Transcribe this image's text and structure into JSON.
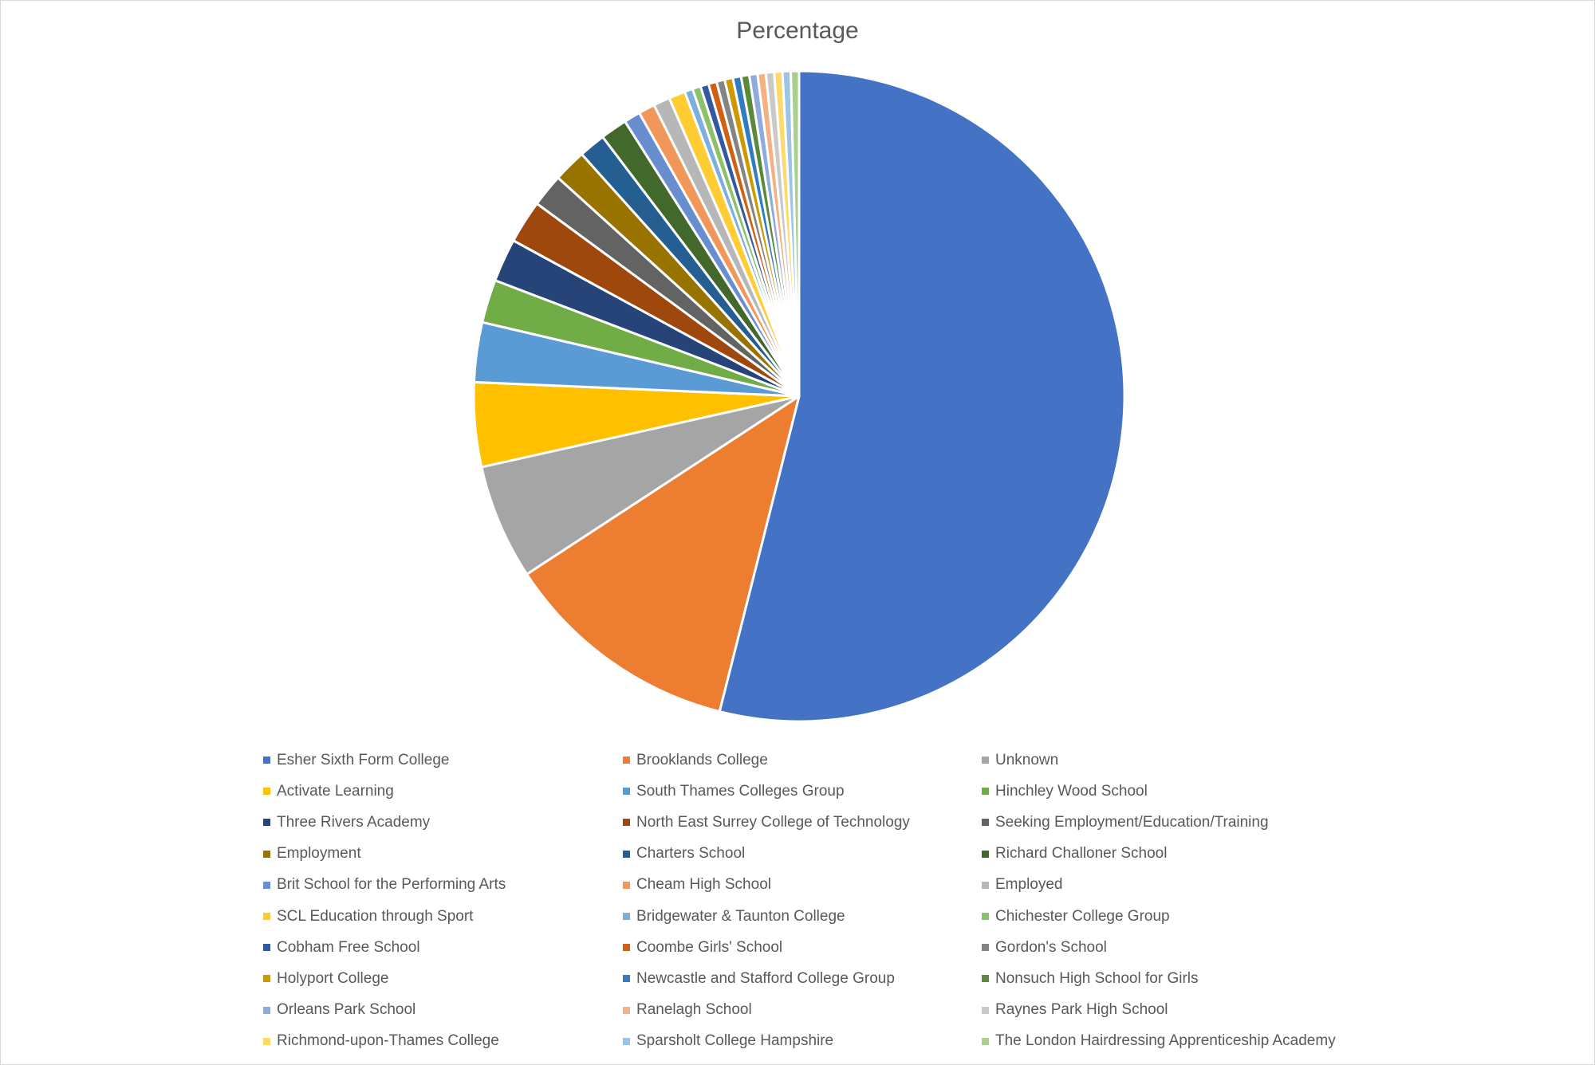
{
  "chart_data": {
    "type": "pie",
    "title": "Percentage",
    "legend_position": "bottom",
    "slices": [
      {
        "label": "Esher Sixth Form College",
        "value": 52.8,
        "color": "#4472C4"
      },
      {
        "label": "Brooklands College",
        "value": 11.6,
        "color": "#ED7D31"
      },
      {
        "label": "Unknown",
        "value": 5.6,
        "color": "#A5A5A5"
      },
      {
        "label": "Activate Learning",
        "value": 4.1,
        "color": "#FFC000"
      },
      {
        "label": "South Thames Colleges Group",
        "value": 2.9,
        "color": "#5B9BD5"
      },
      {
        "label": "Hinchley Wood School",
        "value": 2.1,
        "color": "#70AD47"
      },
      {
        "label": "Three Rivers Academy",
        "value": 2.1,
        "color": "#264478"
      },
      {
        "label": "North East Surrey College of Technology",
        "value": 2.1,
        "color": "#9E480E"
      },
      {
        "label": "Seeking Employment/Education/Training",
        "value": 1.6,
        "color": "#636363"
      },
      {
        "label": "Employment",
        "value": 1.6,
        "color": "#997300"
      },
      {
        "label": "Charters School",
        "value": 1.3,
        "color": "#255E91"
      },
      {
        "label": "Richard Challoner School",
        "value": 1.3,
        "color": "#43682B"
      },
      {
        "label": "Brit School for the Performing Arts",
        "value": 0.8,
        "color": "#698ED0"
      },
      {
        "label": "Cheam High School",
        "value": 0.8,
        "color": "#F1975A"
      },
      {
        "label": "Employed",
        "value": 0.8,
        "color": "#B7B7B7"
      },
      {
        "label": "SCL Education through Sport",
        "value": 0.8,
        "color": "#FFCD33"
      },
      {
        "label": "Bridgewater & Taunton College",
        "value": 0.4,
        "color": "#7CAFDD"
      },
      {
        "label": "Chichester College Group",
        "value": 0.4,
        "color": "#8CC168"
      },
      {
        "label": "Cobham Free School",
        "value": 0.4,
        "color": "#335AA1"
      },
      {
        "label": "Coombe Girls' School",
        "value": 0.4,
        "color": "#D26012"
      },
      {
        "label": "Gordon's School",
        "value": 0.4,
        "color": "#848484"
      },
      {
        "label": "Holyport College",
        "value": 0.4,
        "color": "#CC9A00"
      },
      {
        "label": "Newcastle and Stafford College Group",
        "value": 0.4,
        "color": "#327DC2"
      },
      {
        "label": "Nonsuch High School for Girls",
        "value": 0.4,
        "color": "#5A8A39"
      },
      {
        "label": "Orleans Park School",
        "value": 0.4,
        "color": "#8FAADC"
      },
      {
        "label": "Ranelagh School",
        "value": 0.4,
        "color": "#F4B183"
      },
      {
        "label": "Raynes Park High School",
        "value": 0.4,
        "color": "#C9C9C9"
      },
      {
        "label": "Richmond-upon-Thames College",
        "value": 0.4,
        "color": "#FFD966"
      },
      {
        "label": "Sparsholt College Hampshire",
        "value": 0.4,
        "color": "#9DC3E6"
      },
      {
        "label": "The London Hairdressing Apprenticeship Academy",
        "value": 0.4,
        "color": "#A9D18E"
      }
    ]
  }
}
